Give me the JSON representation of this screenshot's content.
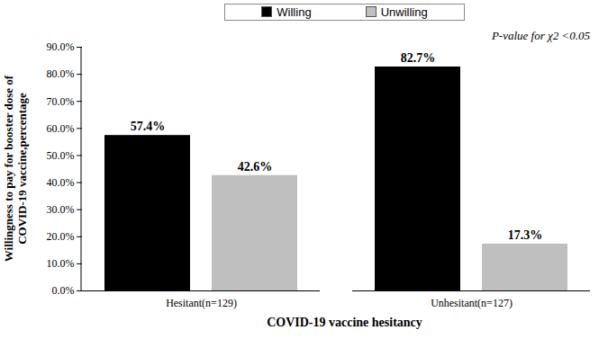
{
  "chart_data": {
    "type": "bar",
    "categories": [
      "Hesitant(n=129)",
      "Unhesitant(n=127)"
    ],
    "series": [
      {
        "name": "Willing",
        "color": "#000000",
        "values": [
          57.4,
          82.7
        ],
        "value_labels": [
          "57.4%",
          "82.7%"
        ]
      },
      {
        "name": "Unwilling",
        "color": "#bfbfbf",
        "values": [
          42.6,
          17.3
        ],
        "value_labels": [
          "42.6%",
          "17.3%"
        ]
      }
    ],
    "x_label": "COVID-19 vaccine hesitancy",
    "y_label": "Willingness to pay for booster dose of COVID-19 vaccine,percentage",
    "annotations": [
      "P-value for χ2 <0.05"
    ],
    "ylim": [
      0,
      90
    ],
    "yticks": [
      {
        "value": 0,
        "label": "0.0%"
      },
      {
        "value": 10,
        "label": "10.0%"
      },
      {
        "value": 20,
        "label": "20.0%"
      },
      {
        "value": 30,
        "label": "30.0%"
      },
      {
        "value": 40,
        "label": "40.0%"
      },
      {
        "value": 50,
        "label": "50.0%"
      },
      {
        "value": 60,
        "label": "60.0%"
      },
      {
        "value": 70,
        "label": "70.0%"
      },
      {
        "value": 80,
        "label": "80.0%"
      },
      {
        "value": 90,
        "label": "90.0%"
      }
    ],
    "legend": "top",
    "data_labels": true,
    "grid": false
  }
}
